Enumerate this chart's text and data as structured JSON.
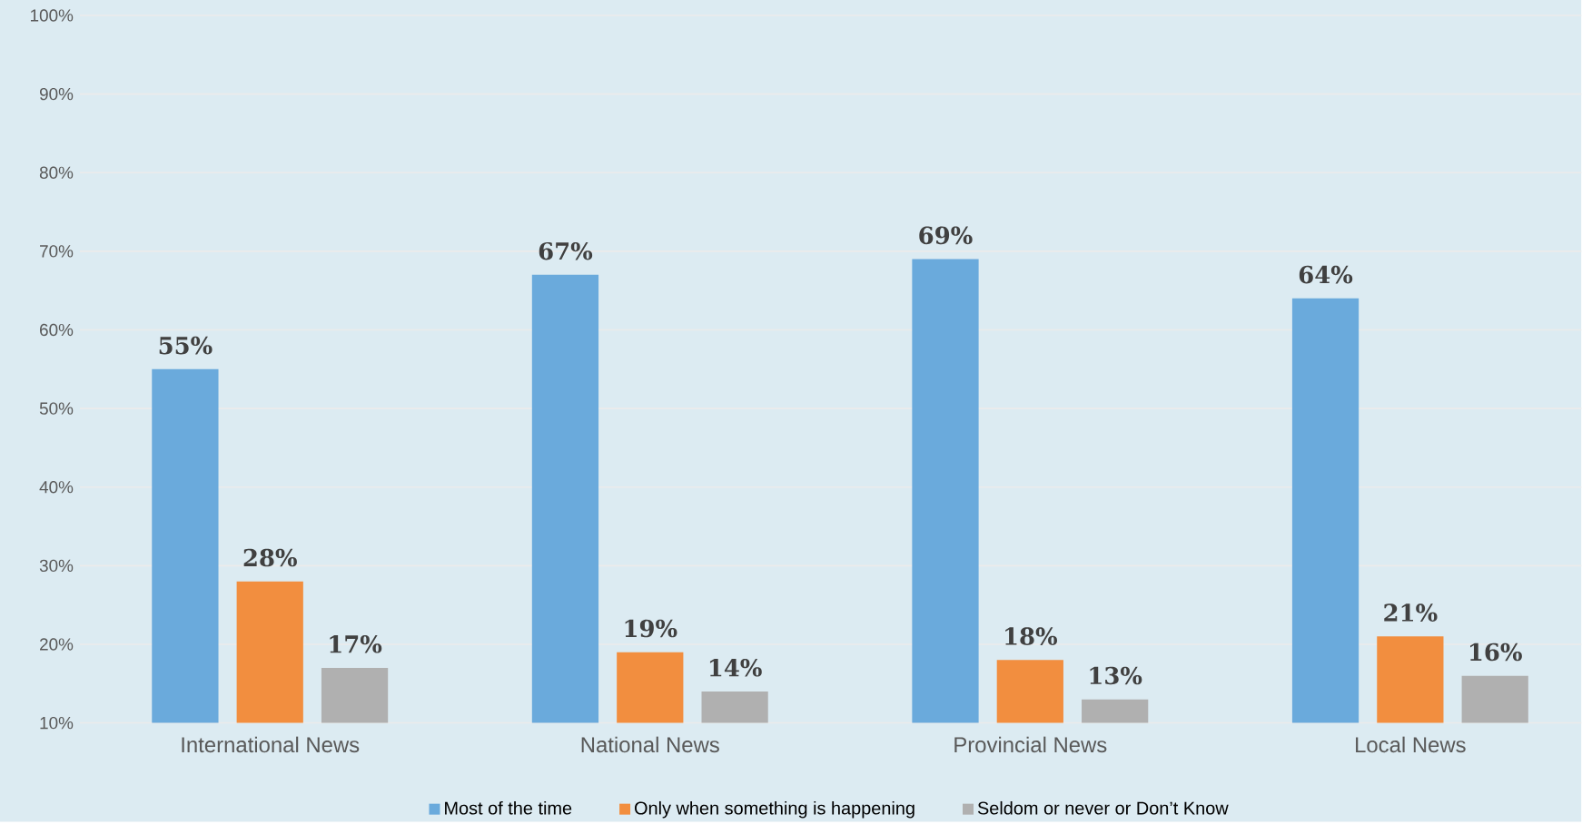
{
  "chart_data": {
    "type": "bar",
    "categories": [
      "International News",
      "National News",
      "Provincial News",
      "Local News"
    ],
    "series": [
      {
        "name": "Most of the time",
        "color": "#6aaadc",
        "values": [
          55,
          67,
          69,
          64
        ],
        "value_labels": [
          "55%",
          "67%",
          "69%",
          "64%"
        ]
      },
      {
        "name": "Only when something is happening",
        "color": "#f28e3f",
        "values": [
          28,
          19,
          18,
          21
        ],
        "value_labels": [
          "28%",
          "19%",
          "18%",
          "21%"
        ]
      },
      {
        "name": "Seldom or never or Don’t Know",
        "color": "#b0b0b0",
        "values": [
          17,
          14,
          13,
          16
        ],
        "value_labels": [
          "17%",
          "14%",
          "13%",
          "16%"
        ]
      }
    ],
    "ylim": [
      10,
      100
    ],
    "yticks": [
      {
        "value": 10,
        "label": "10%"
      },
      {
        "value": 20,
        "label": "20%"
      },
      {
        "value": 30,
        "label": "30%"
      },
      {
        "value": 40,
        "label": "40%"
      },
      {
        "value": 50,
        "label": "50%"
      },
      {
        "value": 60,
        "label": "60%"
      },
      {
        "value": 70,
        "label": "70%"
      },
      {
        "value": 80,
        "label": "80%"
      },
      {
        "value": 90,
        "label": "90%"
      },
      {
        "value": 100,
        "label": "100%"
      }
    ],
    "grid": "y",
    "legend": "bottom"
  }
}
